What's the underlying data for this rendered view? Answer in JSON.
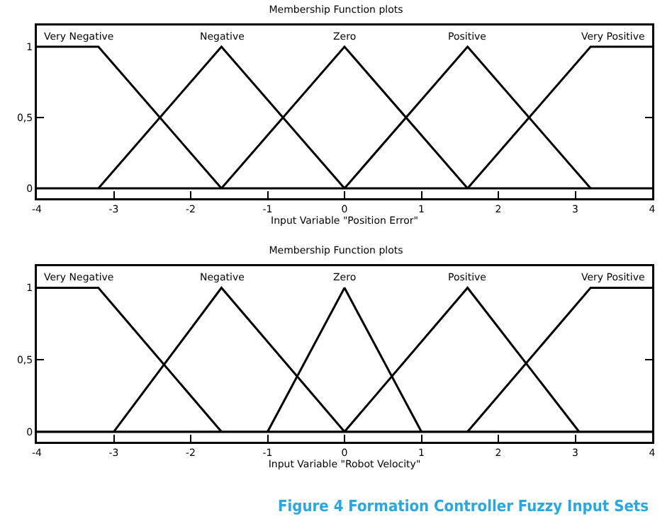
{
  "chart_data": [
    {
      "type": "line",
      "title": "Membership Function plots",
      "xlabel": "Input Variable \"Position Error\"",
      "xlim": [
        -4,
        4
      ],
      "xticks": [
        -4,
        -3,
        -2,
        -1,
        0,
        1,
        2,
        3,
        4
      ],
      "ylim": [
        -0.07,
        1.15
      ],
      "yticks": [
        {
          "value": 0,
          "label": "0"
        },
        {
          "value": 0.5,
          "label": "0,5"
        },
        {
          "value": 1,
          "label": "1"
        }
      ],
      "grid": false,
      "legend": false,
      "marker": "none",
      "line_style": "solid",
      "series": [
        {
          "name": "Very Negative",
          "color": "#000000",
          "x": [
            -4,
            -3.2,
            -1.6
          ],
          "values": [
            1,
            1,
            0
          ]
        },
        {
          "name": "Negative",
          "color": "#000000",
          "x": [
            -3.2,
            -1.6,
            0
          ],
          "values": [
            0,
            1,
            0
          ]
        },
        {
          "name": "Zero",
          "color": "#000000",
          "x": [
            -1.6,
            0,
            1.6
          ],
          "values": [
            0,
            1,
            0
          ]
        },
        {
          "name": "Positive",
          "color": "#000000",
          "x": [
            0,
            1.6,
            3.2
          ],
          "values": [
            0,
            1,
            0
          ]
        },
        {
          "name": "Very Positive",
          "color": "#000000",
          "x": [
            1.6,
            3.2,
            4
          ],
          "values": [
            0,
            1,
            1
          ]
        }
      ],
      "ref_lines": [
        {
          "axis": "y",
          "value": 0,
          "color": "#000000"
        }
      ]
    },
    {
      "type": "line",
      "title": "Membership Function plots",
      "xlabel": "Input Variable \"Robot Velocity\"",
      "xlim": [
        -4,
        4
      ],
      "xticks": [
        -4,
        -3,
        -2,
        -1,
        0,
        1,
        2,
        3,
        4
      ],
      "ylim": [
        -0.07,
        1.15
      ],
      "yticks": [
        {
          "value": 0,
          "label": "0"
        },
        {
          "value": 0.5,
          "label": "0,5"
        },
        {
          "value": 1,
          "label": "1"
        }
      ],
      "grid": false,
      "legend": false,
      "marker": "none",
      "line_style": "solid",
      "series": [
        {
          "name": "Very Negative",
          "color": "#000000",
          "x": [
            -4,
            -3.2,
            -1.6
          ],
          "values": [
            1,
            1,
            0
          ]
        },
        {
          "name": "Negative",
          "color": "#000000",
          "x": [
            -3,
            -1.6,
            0
          ],
          "values": [
            0,
            1,
            0
          ]
        },
        {
          "name": "Zero",
          "color": "#000000",
          "x": [
            -1,
            0,
            1
          ],
          "values": [
            0,
            1,
            0
          ]
        },
        {
          "name": "Positive",
          "color": "#000000",
          "x": [
            0,
            1.6,
            3.05
          ],
          "values": [
            0,
            1,
            0
          ]
        },
        {
          "name": "Very Positive",
          "color": "#000000",
          "x": [
            1.6,
            3.2,
            4
          ],
          "values": [
            0,
            1,
            1
          ]
        }
      ],
      "ref_lines": [
        {
          "axis": "y",
          "value": 0,
          "color": "#000000"
        }
      ],
      "annotations": [
        "Figure 4 Formation Controller Fuzzy Input Sets"
      ]
    }
  ]
}
